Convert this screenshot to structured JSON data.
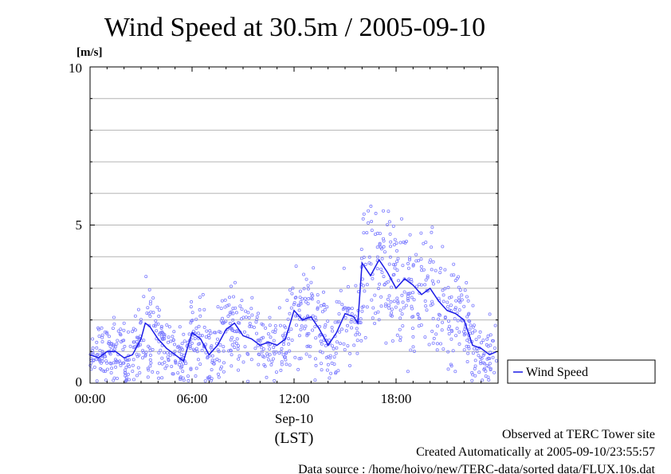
{
  "title": "Wind Speed at 30.5m / 2005-09-10",
  "unit_label": "[m/s]",
  "footer": {
    "line1": "Observed at TERC Tower site",
    "line2": "Created Automatically at 2005-09-10/23:55:57",
    "line3": "Data source : /home/hoivo/new/TERC-data/sorted  data/FLUX.10s.dat"
  },
  "x_axis": {
    "tick_labels": [
      "00:00",
      "06:00",
      "12:00",
      "18:00"
    ],
    "date_label": "Sep-10",
    "zone_label": "(LST)"
  },
  "y_axis": {
    "tick_labels": [
      "0",
      "5",
      "10"
    ]
  },
  "legend": {
    "label": "Wind Speed"
  },
  "colors": {
    "line": "#1a1ae6",
    "points": "#7f7fff",
    "grid": "#b4b4b4"
  },
  "chart_data": {
    "type": "line",
    "title": "Wind Speed at 30.5m / 2005-09-10",
    "xlabel": "Sep-10 (LST)",
    "ylabel": "[m/s]",
    "xlim": [
      "00:00",
      "24:00"
    ],
    "ylim": [
      0,
      10
    ],
    "yticks": [
      0,
      5,
      10
    ],
    "grid": true,
    "legend_position": "right",
    "series": [
      {
        "name": "Wind Speed",
        "style": "line with scattered raw samples",
        "x": [
          "00:00",
          "00:30",
          "01:00",
          "01:30",
          "02:00",
          "02:30",
          "03:00",
          "03:15",
          "03:30",
          "04:00",
          "04:30",
          "05:00",
          "05:30",
          "06:00",
          "06:30",
          "07:00",
          "07:30",
          "08:00",
          "08:30",
          "09:00",
          "09:30",
          "10:00",
          "10:30",
          "11:00",
          "11:30",
          "12:00",
          "12:30",
          "13:00",
          "13:30",
          "14:00",
          "14:30",
          "15:00",
          "15:30",
          "15:45",
          "16:00",
          "16:15",
          "16:30",
          "17:00",
          "17:30",
          "18:00",
          "18:30",
          "19:00",
          "19:30",
          "20:00",
          "20:30",
          "21:00",
          "21:30",
          "22:00",
          "22:30",
          "23:00",
          "23:30",
          "23:55"
        ],
        "values": [
          0.9,
          0.8,
          1.0,
          1.0,
          0.8,
          0.9,
          1.4,
          1.9,
          1.8,
          1.4,
          1.1,
          0.9,
          0.7,
          1.6,
          1.4,
          0.9,
          1.2,
          1.7,
          1.9,
          1.5,
          1.4,
          1.2,
          1.3,
          1.2,
          1.4,
          2.3,
          2.0,
          2.1,
          1.7,
          1.2,
          1.6,
          2.2,
          2.1,
          1.9,
          3.8,
          3.6,
          3.4,
          3.9,
          3.5,
          3.0,
          3.3,
          3.1,
          2.8,
          3.0,
          2.6,
          2.3,
          2.2,
          2.0,
          1.2,
          1.1,
          0.9,
          1.0
        ]
      }
    ]
  }
}
